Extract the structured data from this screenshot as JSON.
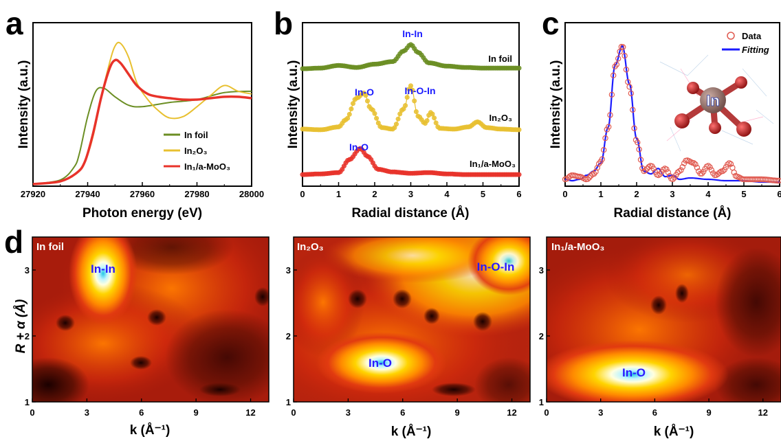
{
  "panel_labels": [
    "a",
    "b",
    "c",
    "d"
  ],
  "colors": {
    "in_foil": "#6b8e23",
    "in2o3": "#e8c030",
    "in1": "#e8332a",
    "data_marker": "#e05a50",
    "fitting": "#1a1aff",
    "annotation": "#1a1aff"
  },
  "chart_data": [
    {
      "panel": "a",
      "type": "line",
      "xlabel": "Photon energy (eV)",
      "ylabel": "Intensity (a.u.)",
      "xlim": [
        27920,
        28000
      ],
      "xticks": [
        "27920",
        "27940",
        "27960",
        "27980",
        "28000"
      ],
      "legend": [
        "In foil",
        "In₂O₃",
        "In₁/a-MoO₃"
      ],
      "legend_position": "lower-right",
      "series": [
        {
          "name": "In foil",
          "color": "#6b8e23",
          "x": [
            27920,
            27930,
            27935,
            27937,
            27940,
            27943,
            27946,
            27950,
            27955,
            27960,
            27970,
            27980,
            27990,
            28000
          ],
          "y": [
            0.0,
            0.03,
            0.12,
            0.22,
            0.48,
            0.66,
            0.68,
            0.62,
            0.56,
            0.55,
            0.58,
            0.6,
            0.65,
            0.66
          ]
        },
        {
          "name": "In₂O₃",
          "color": "#e8c030",
          "x": [
            27920,
            27930,
            27936,
            27939,
            27942,
            27945,
            27948,
            27950,
            27952,
            27955,
            27958,
            27962,
            27966,
            27970,
            27975,
            27980,
            27985,
            27990,
            27995,
            28000
          ],
          "y": [
            0.0,
            0.02,
            0.08,
            0.16,
            0.34,
            0.62,
            0.86,
            0.98,
            1.0,
            0.9,
            0.72,
            0.6,
            0.52,
            0.47,
            0.48,
            0.55,
            0.63,
            0.7,
            0.66,
            0.64
          ]
        },
        {
          "name": "In₁/a-MoO₃",
          "color": "#e8332a",
          "x": [
            27920,
            27930,
            27936,
            27939,
            27942,
            27945,
            27948,
            27950,
            27952,
            27955,
            27958,
            27962,
            27966,
            27970,
            27975,
            27980,
            27985,
            27990,
            27995,
            28000
          ],
          "y": [
            0.0,
            0.02,
            0.08,
            0.16,
            0.36,
            0.62,
            0.82,
            0.88,
            0.86,
            0.78,
            0.7,
            0.64,
            0.62,
            0.61,
            0.6,
            0.6,
            0.61,
            0.62,
            0.62,
            0.61
          ]
        }
      ]
    },
    {
      "panel": "b",
      "type": "line",
      "xlabel": "Radial distance (Å)",
      "ylabel": "Intensity (a.u.)",
      "xlim": [
        0,
        6
      ],
      "xticks": [
        "0",
        "1",
        "2",
        "3",
        "4",
        "5",
        "6"
      ],
      "series": [
        {
          "name": "In foil",
          "color": "#6b8e23",
          "marker": "circle",
          "x": [
            0,
            0.5,
            1.0,
            1.5,
            2.0,
            2.5,
            2.8,
            3.0,
            3.2,
            3.5,
            4.0,
            4.5,
            5.0,
            5.5,
            6.0
          ],
          "y": [
            0.01,
            0.02,
            0.06,
            0.03,
            0.08,
            0.12,
            0.28,
            0.38,
            0.26,
            0.1,
            0.05,
            0.03,
            0.02,
            0.02,
            0.02
          ]
        },
        {
          "name": "In₂O₃",
          "color": "#e8c030",
          "marker": "circle",
          "x": [
            0,
            0.5,
            1.0,
            1.2,
            1.5,
            1.7,
            1.9,
            2.2,
            2.5,
            2.8,
            3.0,
            3.2,
            3.4,
            3.55,
            3.8,
            4.2,
            4.6,
            4.85,
            5.1,
            5.5,
            6.0
          ],
          "y": [
            0.02,
            0.01,
            0.05,
            0.15,
            0.45,
            0.52,
            0.3,
            0.04,
            0.02,
            0.3,
            0.62,
            0.2,
            0.1,
            0.25,
            0.03,
            0.02,
            0.05,
            0.12,
            0.04,
            0.02,
            0.01
          ]
        },
        {
          "name": "In₁/a-MoO₃",
          "color": "#e8332a",
          "marker": "circle",
          "x": [
            0,
            0.5,
            1.0,
            1.3,
            1.6,
            1.8,
            2.1,
            2.5,
            3.0,
            3.5,
            4.0,
            4.5,
            5.0,
            5.5,
            6.0
          ],
          "y": [
            0.02,
            0.03,
            0.05,
            0.25,
            0.42,
            0.3,
            0.1,
            0.06,
            0.04,
            0.05,
            0.03,
            0.02,
            0.02,
            0.02,
            0.02
          ]
        }
      ],
      "series_labels": [
        "In foil",
        "In₂O₃",
        "In₁/a-MoO₃"
      ],
      "annotations": [
        "In-In",
        "In-O",
        "In-O-In",
        "In-O"
      ]
    },
    {
      "panel": "c",
      "type": "line",
      "xlabel": "Radial distance (Å)",
      "ylabel": "Intensity (a.u.)",
      "xlim": [
        0,
        6
      ],
      "xticks": [
        "0",
        "1",
        "2",
        "3",
        "4",
        "5",
        "6"
      ],
      "legend": [
        "Data",
        "Fitting"
      ],
      "legend_position": "top-right",
      "series": [
        {
          "name": "Data",
          "color": "#e05a50",
          "marker": "open-circle",
          "x": [
            0,
            0.2,
            0.4,
            0.6,
            0.8,
            1.0,
            1.2,
            1.4,
            1.6,
            1.8,
            2.0,
            2.2,
            2.4,
            2.6,
            2.8,
            3.0,
            3.2,
            3.4,
            3.6,
            3.8,
            4.0,
            4.2,
            4.4,
            4.6,
            4.8,
            5.0,
            5.5,
            6.0
          ],
          "y": [
            0.02,
            0.05,
            0.04,
            0.02,
            0.06,
            0.15,
            0.4,
            0.85,
            1.0,
            0.7,
            0.3,
            0.08,
            0.12,
            0.05,
            0.1,
            0.02,
            0.08,
            0.16,
            0.14,
            0.06,
            0.12,
            0.05,
            0.08,
            0.14,
            0.04,
            0.02,
            0.02,
            0.01
          ]
        },
        {
          "name": "Fitting",
          "color": "#1a1aff",
          "x": [
            0,
            0.2,
            0.4,
            0.6,
            0.8,
            1.0,
            1.2,
            1.4,
            1.6,
            1.8,
            2.0,
            2.2,
            2.4,
            2.6,
            2.8,
            3.0,
            3.2,
            3.5,
            4.0,
            4.5,
            5.0,
            5.5,
            6.0
          ],
          "y": [
            0.02,
            0.01,
            0.02,
            0.05,
            0.08,
            0.14,
            0.4,
            0.86,
            1.0,
            0.72,
            0.32,
            0.08,
            0.06,
            0.1,
            0.04,
            0.05,
            0.02,
            0.03,
            0.02,
            0.01,
            0.01,
            0.0,
            0.0
          ]
        }
      ],
      "inset_label": "In"
    },
    {
      "panel": "d",
      "type": "heatmap",
      "xlabel": "k (Å⁻¹)",
      "ylabel": "R + α (Å)",
      "xlim": [
        0,
        13
      ],
      "ylim": [
        1,
        3.5
      ],
      "xticks": [
        "0",
        "3",
        "6",
        "9",
        "12"
      ],
      "yticks": [
        "1",
        "2",
        "3"
      ],
      "maps": [
        {
          "label": "In foil",
          "annotations": [
            "In-In"
          ],
          "peaks": [
            {
              "k": 4.0,
              "r": 3.0,
              "amp": 1.0
            }
          ]
        },
        {
          "label": "In₂O₃",
          "annotations": [
            "In-O",
            "In-O-In"
          ],
          "peaks": [
            {
              "k": 5.0,
              "r": 1.6,
              "amp": 1.0
            },
            {
              "k": 12.0,
              "r": 3.0,
              "amp": 0.75
            }
          ]
        },
        {
          "label": "In₁/a-MoO₃",
          "annotations": [
            "In-O"
          ],
          "peaks": [
            {
              "k": 5.0,
              "r": 1.45,
              "amp": 1.0
            }
          ]
        }
      ]
    }
  ]
}
